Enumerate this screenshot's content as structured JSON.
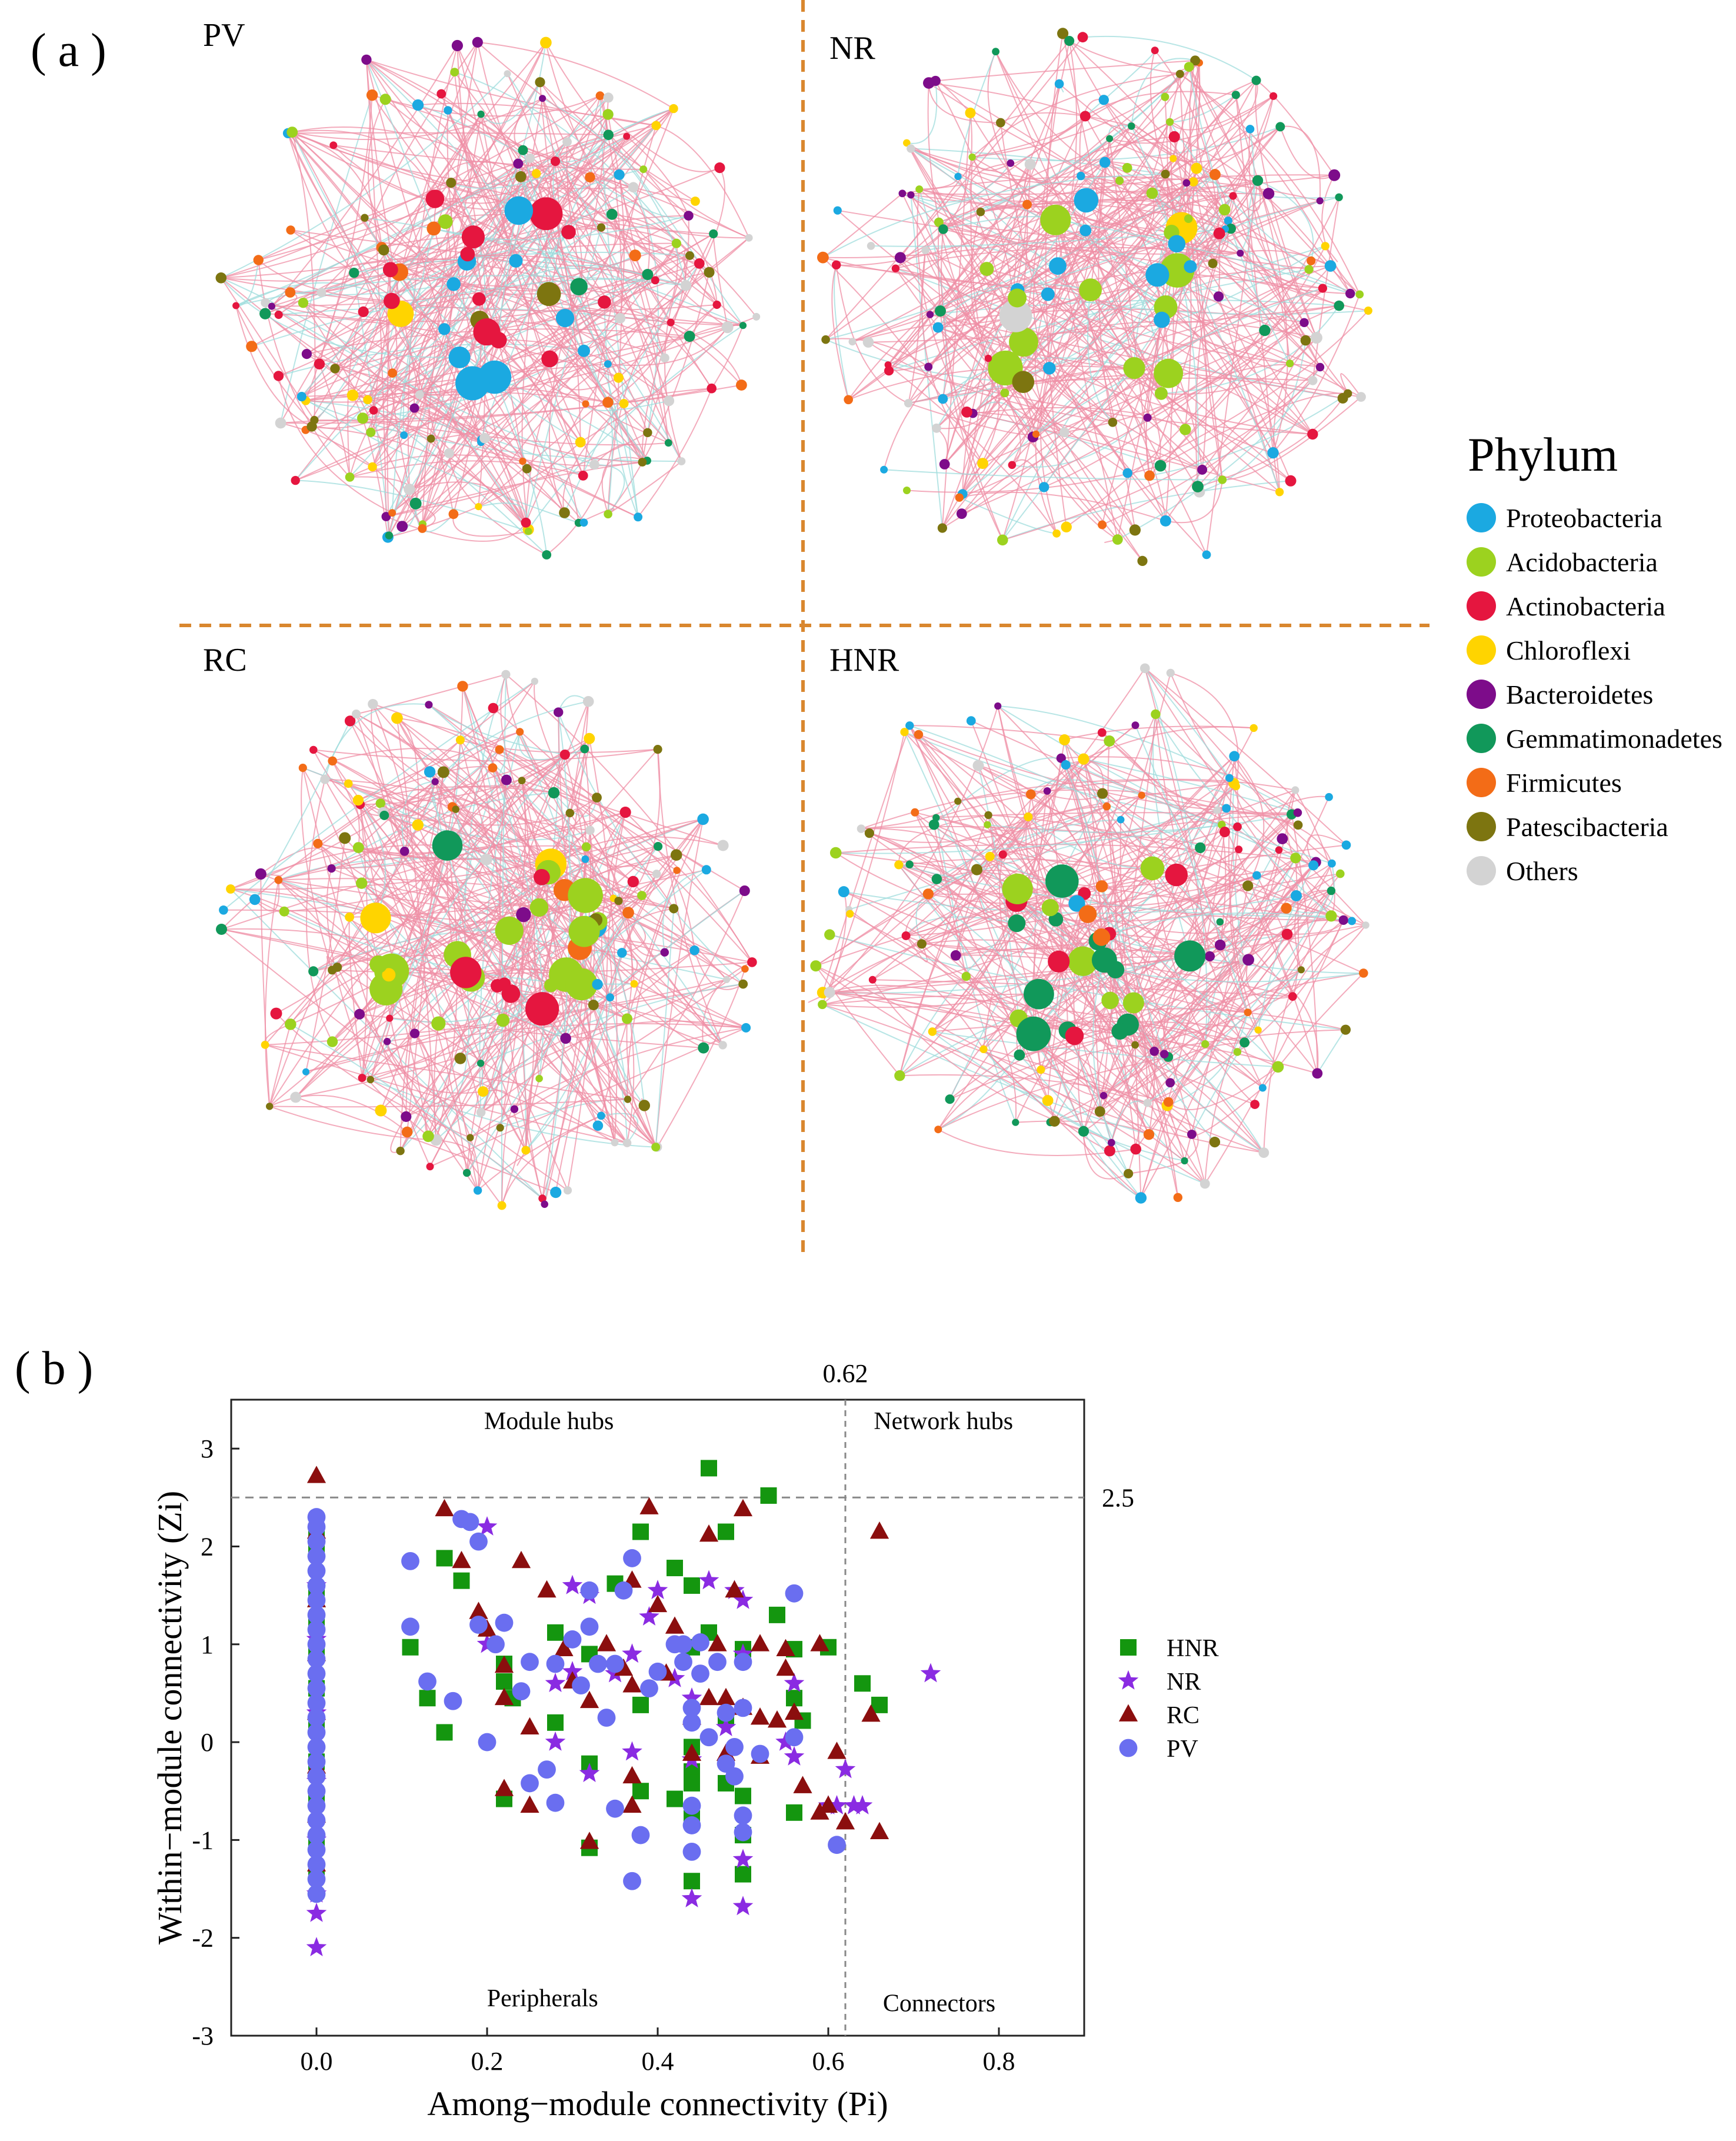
{
  "panel_a_label": "( a )",
  "panel_b_label": "( b )",
  "networks": [
    {
      "name": "PV",
      "dominant": [
        "Actinobacteria",
        "Proteobacteria"
      ]
    },
    {
      "name": "NR",
      "dominant": [
        "Proteobacteria",
        "Acidobacteria"
      ]
    },
    {
      "name": "RC",
      "dominant": [
        "Acidobacteria",
        "Actinobacteria"
      ]
    },
    {
      "name": "HNR",
      "dominant": [
        "Acidobacteria",
        "Actinobacteria",
        "Gemmatimonadetes"
      ]
    }
  ],
  "phylum_legend": {
    "title": "Phylum",
    "items": [
      {
        "label": "Proteobacteria",
        "color": "#1ba9e1"
      },
      {
        "label": "Acidobacteria",
        "color": "#9cd21f"
      },
      {
        "label": "Actinobacteria",
        "color": "#e5163f"
      },
      {
        "label": "Chloroflexi",
        "color": "#ffd400"
      },
      {
        "label": "Bacteroidetes",
        "color": "#7d0c8a"
      },
      {
        "label": "Gemmatimonadetes",
        "color": "#11985a"
      },
      {
        "label": "Firmicutes",
        "color": "#f36c17"
      },
      {
        "label": "Patescibacteria",
        "color": "#7d7510"
      },
      {
        "label": "Others",
        "color": "#d3d3d3"
      }
    ]
  },
  "chart_data": {
    "type": "scatter",
    "xlabel": "Among−module connectivity (Pi)",
    "ylabel": "Within−module connectivity (Zi)",
    "xlim": [
      -0.1,
      0.9
    ],
    "ylim": [
      -3,
      3.5
    ],
    "xticks": [
      "0.0",
      "0.2",
      "0.4",
      "0.6",
      "0.8"
    ],
    "yticks": [
      "-3",
      "-2",
      "-1",
      "0",
      "1",
      "2",
      "3"
    ],
    "pi_threshold": 0.62,
    "pi_threshold_label": "0.62",
    "zi_threshold": 2.5,
    "zi_threshold_label": "2.5",
    "regions": {
      "module_hubs": "Module hubs",
      "network_hubs": "Network  hubs",
      "peripherals": "Peripherals",
      "connectors": "Connectors"
    },
    "series": [
      {
        "name": "HNR",
        "marker": "square",
        "color": "#14960f",
        "points": [
          [
            0,
            2.15
          ],
          [
            0,
            1.95
          ],
          [
            0,
            1.55
          ],
          [
            0,
            1.2
          ],
          [
            0,
            0.9
          ],
          [
            0,
            0.55
          ],
          [
            0,
            0.2
          ],
          [
            0,
            -0.2
          ],
          [
            0,
            -0.6
          ],
          [
            0,
            -1.0
          ],
          [
            0,
            -1.35
          ],
          [
            0.11,
            0.97
          ],
          [
            0.13,
            0.45
          ],
          [
            0.15,
            1.88
          ],
          [
            0.15,
            0.1
          ],
          [
            0.17,
            1.65
          ],
          [
            0.22,
            0.8
          ],
          [
            0.22,
            0.62
          ],
          [
            0.22,
            -0.58
          ],
          [
            0.23,
            0.45
          ],
          [
            0.28,
            1.12
          ],
          [
            0.28,
            0.2
          ],
          [
            0.32,
            0.9
          ],
          [
            0.32,
            -0.22
          ],
          [
            0.32,
            -1.08
          ],
          [
            0.35,
            1.62
          ],
          [
            0.38,
            2.15
          ],
          [
            0.38,
            0.38
          ],
          [
            0.38,
            -0.5
          ],
          [
            0.42,
            1.78
          ],
          [
            0.42,
            -0.58
          ],
          [
            0.44,
            1.6
          ],
          [
            0.44,
            0.97
          ],
          [
            0.44,
            -0.05
          ],
          [
            0.44,
            -0.3
          ],
          [
            0.44,
            -0.42
          ],
          [
            0.44,
            -0.78
          ],
          [
            0.44,
            -1.42
          ],
          [
            0.46,
            1.12
          ],
          [
            0.46,
            2.8
          ],
          [
            0.48,
            2.15
          ],
          [
            0.48,
            0.25
          ],
          [
            0.48,
            -0.42
          ],
          [
            0.5,
            0.95
          ],
          [
            0.5,
            -0.55
          ],
          [
            0.5,
            -0.95
          ],
          [
            0.5,
            -1.35
          ],
          [
            0.53,
            2.52
          ],
          [
            0.54,
            1.3
          ],
          [
            0.56,
            0.95
          ],
          [
            0.56,
            0.45
          ],
          [
            0.56,
            -0.72
          ],
          [
            0.57,
            0.22
          ],
          [
            0.6,
            0.97
          ],
          [
            0.64,
            0.6
          ],
          [
            0.66,
            0.38
          ]
        ]
      },
      {
        "name": "NR",
        "marker": "star",
        "color": "#8a2be2",
        "points": [
          [
            0,
            1.6
          ],
          [
            0,
            1.05
          ],
          [
            0,
            0.3
          ],
          [
            0,
            -0.4
          ],
          [
            0,
            -1.0
          ],
          [
            0,
            -1.55
          ],
          [
            0,
            -1.75
          ],
          [
            0,
            -2.1
          ],
          [
            0.2,
            2.2
          ],
          [
            0.2,
            1.0
          ],
          [
            0.28,
            0.6
          ],
          [
            0.28,
            0.0
          ],
          [
            0.3,
            1.6
          ],
          [
            0.3,
            0.72
          ],
          [
            0.32,
            1.5
          ],
          [
            0.32,
            -0.32
          ],
          [
            0.35,
            0.7
          ],
          [
            0.37,
            0.9
          ],
          [
            0.37,
            -0.1
          ],
          [
            0.39,
            1.28
          ],
          [
            0.4,
            1.55
          ],
          [
            0.42,
            0.65
          ],
          [
            0.44,
            0.45
          ],
          [
            0.44,
            -0.18
          ],
          [
            0.44,
            -1.6
          ],
          [
            0.46,
            1.65
          ],
          [
            0.48,
            0.15
          ],
          [
            0.49,
            1.55
          ],
          [
            0.5,
            1.45
          ],
          [
            0.5,
            0.9
          ],
          [
            0.5,
            -1.2
          ],
          [
            0.5,
            -1.68
          ],
          [
            0.55,
            0.0
          ],
          [
            0.56,
            0.6
          ],
          [
            0.56,
            -0.15
          ],
          [
            0.6,
            -0.65
          ],
          [
            0.61,
            -0.65
          ],
          [
            0.62,
            -0.28
          ],
          [
            0.63,
            -0.65
          ],
          [
            0.64,
            -0.65
          ],
          [
            0.72,
            0.7
          ]
        ]
      },
      {
        "name": "RC",
        "marker": "triangle",
        "color": "#8b0e0e",
        "points": [
          [
            0,
            2.72
          ],
          [
            0,
            2.15
          ],
          [
            0,
            1.45
          ],
          [
            0,
            0.9
          ],
          [
            0,
            0.3
          ],
          [
            0,
            -0.25
          ],
          [
            0,
            -0.75
          ],
          [
            0,
            -1.25
          ],
          [
            0.15,
            2.38
          ],
          [
            0.17,
            1.85
          ],
          [
            0.19,
            1.33
          ],
          [
            0.2,
            1.15
          ],
          [
            0.22,
            0.78
          ],
          [
            0.22,
            0.45
          ],
          [
            0.22,
            -0.48
          ],
          [
            0.24,
            1.85
          ],
          [
            0.25,
            0.15
          ],
          [
            0.25,
            -0.65
          ],
          [
            0.27,
            1.55
          ],
          [
            0.29,
            0.95
          ],
          [
            0.3,
            0.62
          ],
          [
            0.32,
            -1.02
          ],
          [
            0.32,
            0.42
          ],
          [
            0.34,
            1.0
          ],
          [
            0.36,
            0.75
          ],
          [
            0.37,
            1.65
          ],
          [
            0.37,
            0.58
          ],
          [
            0.37,
            -0.35
          ],
          [
            0.37,
            -0.65
          ],
          [
            0.39,
            2.4
          ],
          [
            0.4,
            1.4
          ],
          [
            0.41,
            0.7
          ],
          [
            0.42,
            1.18
          ],
          [
            0.44,
            0.25
          ],
          [
            0.44,
            -0.12
          ],
          [
            0.46,
            0.45
          ],
          [
            0.46,
            2.12
          ],
          [
            0.47,
            1.0
          ],
          [
            0.48,
            0.45
          ],
          [
            0.48,
            -0.12
          ],
          [
            0.49,
            1.55
          ],
          [
            0.5,
            2.38
          ],
          [
            0.5,
            0.35
          ],
          [
            0.52,
            1.0
          ],
          [
            0.52,
            0.25
          ],
          [
            0.52,
            -0.15
          ],
          [
            0.54,
            0.22
          ],
          [
            0.55,
            0.95
          ],
          [
            0.55,
            0.75
          ],
          [
            0.56,
            0.3
          ],
          [
            0.57,
            -0.45
          ],
          [
            0.59,
            1.0
          ],
          [
            0.59,
            -0.72
          ],
          [
            0.6,
            -0.65
          ],
          [
            0.61,
            -0.1
          ],
          [
            0.62,
            -0.82
          ],
          [
            0.65,
            0.28
          ],
          [
            0.66,
            2.15
          ],
          [
            0.66,
            -0.92
          ]
        ]
      },
      {
        "name": "PV",
        "marker": "circle",
        "color": "#6a6ef0",
        "points": [
          [
            0,
            2.3
          ],
          [
            0,
            2.2
          ],
          [
            0,
            2.05
          ],
          [
            0,
            1.9
          ],
          [
            0,
            1.75
          ],
          [
            0,
            1.6
          ],
          [
            0,
            1.45
          ],
          [
            0,
            1.3
          ],
          [
            0,
            1.15
          ],
          [
            0,
            1.0
          ],
          [
            0,
            0.85
          ],
          [
            0,
            0.7
          ],
          [
            0,
            0.55
          ],
          [
            0,
            0.4
          ],
          [
            0,
            0.25
          ],
          [
            0,
            0.1
          ],
          [
            0,
            -0.05
          ],
          [
            0,
            -0.2
          ],
          [
            0,
            -0.35
          ],
          [
            0,
            -0.5
          ],
          [
            0,
            -0.65
          ],
          [
            0,
            -0.8
          ],
          [
            0,
            -0.95
          ],
          [
            0,
            -1.1
          ],
          [
            0,
            -1.25
          ],
          [
            0,
            -1.4
          ],
          [
            0,
            -1.55
          ],
          [
            0.11,
            1.85
          ],
          [
            0.11,
            1.18
          ],
          [
            0.13,
            0.62
          ],
          [
            0.16,
            0.42
          ],
          [
            0.17,
            2.28
          ],
          [
            0.18,
            2.25
          ],
          [
            0.19,
            2.05
          ],
          [
            0.19,
            1.2
          ],
          [
            0.2,
            0.0
          ],
          [
            0.21,
            1.0
          ],
          [
            0.22,
            1.22
          ],
          [
            0.24,
            0.52
          ],
          [
            0.25,
            0.82
          ],
          [
            0.25,
            -0.42
          ],
          [
            0.27,
            -0.28
          ],
          [
            0.28,
            0.8
          ],
          [
            0.28,
            -0.62
          ],
          [
            0.3,
            1.05
          ],
          [
            0.31,
            0.58
          ],
          [
            0.32,
            1.55
          ],
          [
            0.32,
            1.18
          ],
          [
            0.33,
            0.8
          ],
          [
            0.34,
            0.25
          ],
          [
            0.35,
            0.8
          ],
          [
            0.35,
            -0.68
          ],
          [
            0.36,
            1.55
          ],
          [
            0.37,
            1.88
          ],
          [
            0.37,
            -1.42
          ],
          [
            0.38,
            -0.95
          ],
          [
            0.39,
            0.55
          ],
          [
            0.4,
            0.72
          ],
          [
            0.42,
            1.0
          ],
          [
            0.43,
            0.82
          ],
          [
            0.43,
            1.0
          ],
          [
            0.44,
            0.2
          ],
          [
            0.44,
            0.35
          ],
          [
            0.44,
            -0.65
          ],
          [
            0.44,
            -0.85
          ],
          [
            0.44,
            -1.12
          ],
          [
            0.45,
            1.02
          ],
          [
            0.45,
            0.7
          ],
          [
            0.46,
            0.05
          ],
          [
            0.47,
            0.82
          ],
          [
            0.48,
            0.3
          ],
          [
            0.48,
            -0.22
          ],
          [
            0.49,
            -0.05
          ],
          [
            0.49,
            -0.35
          ],
          [
            0.5,
            0.82
          ],
          [
            0.5,
            0.35
          ],
          [
            0.5,
            -0.75
          ],
          [
            0.5,
            -0.92
          ],
          [
            0.52,
            -0.12
          ],
          [
            0.56,
            1.52
          ],
          [
            0.56,
            0.05
          ],
          [
            0.61,
            -1.05
          ]
        ]
      }
    ]
  }
}
